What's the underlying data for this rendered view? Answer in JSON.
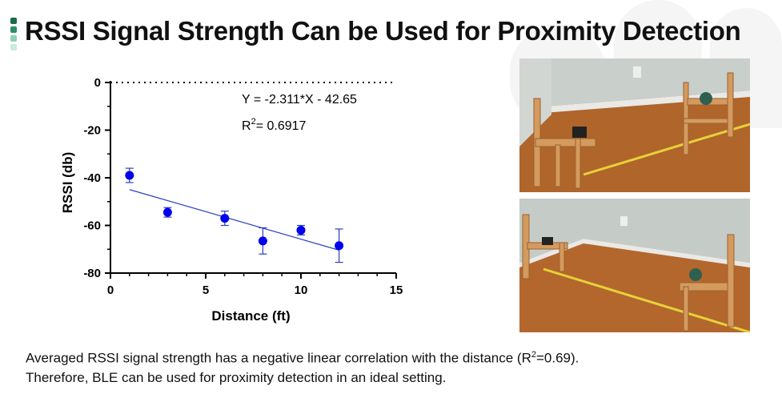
{
  "slide": {
    "title": "RSSI Signal Strength Can be Used for Proximity Detection",
    "caption_line1_pre": "Averaged RSSI signal strength has a negative linear correlation with the distance (R",
    "caption_line1_sup": "2",
    "caption_line1_post": "=0.69).",
    "caption_line2": "Therefore, BLE can be used for proximity detection in an ideal setting."
  },
  "colors": {
    "accent": "#1a7f5a",
    "points": "#0000ee",
    "fit_line": "#2a3fbf"
  },
  "chart_data": {
    "type": "scatter",
    "title": "",
    "xlabel": "Distance (ft)",
    "ylabel": "RSSI (db)",
    "xlim": [
      0,
      15
    ],
    "ylim": [
      -80,
      0
    ],
    "xticks": [
      0,
      5,
      10,
      15
    ],
    "yticks": [
      0,
      -20,
      -40,
      -60,
      -80
    ],
    "x": [
      1,
      3,
      6,
      8,
      10,
      12
    ],
    "y": [
      -39,
      -54.5,
      -57,
      -66.5,
      -62,
      -68.5
    ],
    "error": [
      3,
      2,
      3,
      5.5,
      2,
      7
    ],
    "fit": {
      "slope": -2.311,
      "intercept": -42.65,
      "x_range": [
        1,
        12
      ]
    },
    "equation_text": "Y = -2.311*X - 42.65",
    "r2_prefix": "R",
    "r2_sup": "2",
    "r2_value": "= 0.6917",
    "zero_reference_line": true,
    "grid": false
  },
  "photos": [
    {
      "name": "photo-top",
      "depicts": "two wooden chairs with BLE devices and a tape measure on a hardwood floor"
    },
    {
      "name": "photo-bottom",
      "depicts": "two wooden chairs farther apart with a tape measure on a hardwood floor"
    }
  ]
}
